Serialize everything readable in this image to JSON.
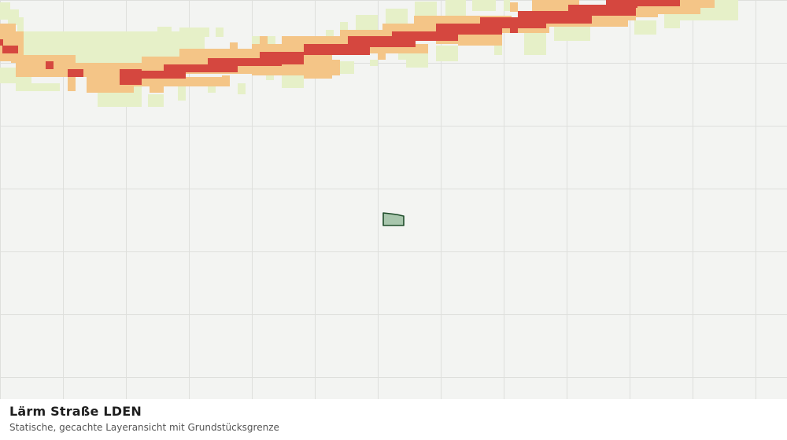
{
  "caption": {
    "title": "Lärm Straße LDEN",
    "subtitle": "Statische, gecachte Layeransicht mit Grundstücksgrenze"
  },
  "map": {
    "layer_name": "Lärm Straße LDEN",
    "colors": {
      "background": "#f3f4f2",
      "grid": "#dedfdc",
      "noise_low": "#e6f0c8",
      "noise_mid": "#f4c587",
      "noise_high": "#d5473f",
      "parcel_fill": "#a8c6ad",
      "parcel_stroke": "#1f4d2b"
    },
    "noise_classes": [
      "low",
      "mid",
      "high"
    ],
    "parcel": {
      "label": "Grundstücksgrenze"
    }
  }
}
